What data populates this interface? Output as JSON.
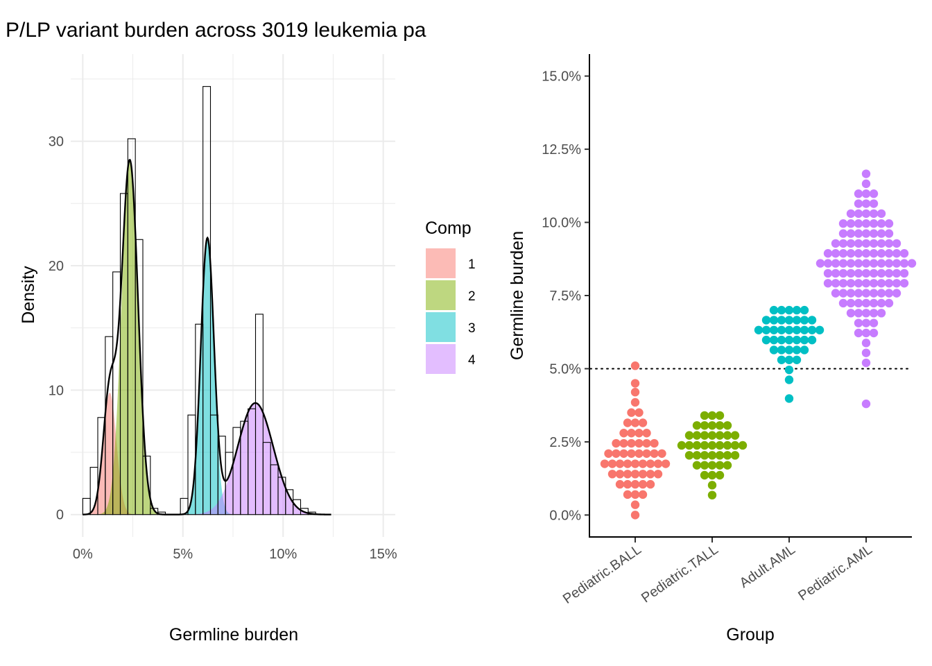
{
  "chart_data": [
    {
      "type": "histogram-density",
      "title": "P/LP variant burden across 3019 leukemia pa",
      "xlabel": "Germline burden",
      "ylabel": "Density",
      "xlim": [
        -0.006,
        0.156
      ],
      "ylim": [
        -1.8,
        37
      ],
      "x_ticks": [
        {
          "value": 0.0,
          "label": "0%"
        },
        {
          "value": 0.05,
          "label": "5%"
        },
        {
          "value": 0.1,
          "label": "10%"
        },
        {
          "value": 0.15,
          "label": "15%"
        }
      ],
      "y_ticks": [
        {
          "value": 0,
          "label": "0"
        },
        {
          "value": 10,
          "label": "10"
        },
        {
          "value": 20,
          "label": "20"
        },
        {
          "value": 30,
          "label": "30"
        }
      ],
      "grid": true,
      "legend": {
        "title": "Comp",
        "placement": "right"
      },
      "histogram": {
        "bin_width": 0.00375,
        "bins": [
          {
            "x0": 0.0,
            "density": 1.3
          },
          {
            "x0": 0.00375,
            "density": 3.8
          },
          {
            "x0": 0.0075,
            "density": 7.8
          },
          {
            "x0": 0.01125,
            "density": 14.3
          },
          {
            "x0": 0.015,
            "density": 19.5
          },
          {
            "x0": 0.01875,
            "density": 25.8
          },
          {
            "x0": 0.0225,
            "density": 30.2
          },
          {
            "x0": 0.02625,
            "density": 22.1
          },
          {
            "x0": 0.03,
            "density": 4.7
          },
          {
            "x0": 0.03375,
            "density": 0.5
          },
          {
            "x0": 0.0375,
            "density": 0.2
          },
          {
            "x0": 0.04125,
            "density": 0
          },
          {
            "x0": 0.045,
            "density": 0
          },
          {
            "x0": 0.04875,
            "density": 1.3
          },
          {
            "x0": 0.0525,
            "density": 8.0
          },
          {
            "x0": 0.05625,
            "density": 15.3
          },
          {
            "x0": 0.06,
            "density": 34.4
          },
          {
            "x0": 0.06375,
            "density": 8.0
          },
          {
            "x0": 0.0675,
            "density": 6.3
          },
          {
            "x0": 0.07125,
            "density": 5.0
          },
          {
            "x0": 0.075,
            "density": 7.0
          },
          {
            "x0": 0.07875,
            "density": 7.5
          },
          {
            "x0": 0.0825,
            "density": 8.5
          },
          {
            "x0": 0.08625,
            "density": 16.1
          },
          {
            "x0": 0.09,
            "density": 5.8
          },
          {
            "x0": 0.09375,
            "density": 4.0
          },
          {
            "x0": 0.0975,
            "density": 3.0
          },
          {
            "x0": 0.10125,
            "density": 2.0
          },
          {
            "x0": 0.105,
            "density": 1.2
          },
          {
            "x0": 0.10875,
            "density": 0.5
          },
          {
            "x0": 0.1125,
            "density": 0.2
          }
        ]
      },
      "components": [
        {
          "name": "1",
          "mean": 0.0135,
          "sd": 0.0033,
          "weight": 0.081,
          "color": "#F8766D"
        },
        {
          "name": "2",
          "mean": 0.0235,
          "sd": 0.0041,
          "weight": 0.292,
          "color": "#7CAE00"
        },
        {
          "name": "3",
          "mean": 0.0622,
          "sd": 0.0033,
          "weight": 0.182,
          "color": "#00BFC4"
        },
        {
          "name": "4",
          "mean": 0.0862,
          "sd": 0.0089,
          "weight": 0.2,
          "color": "#C77CFF"
        }
      ],
      "curve_x_range": [
        0.0,
        0.124
      ]
    },
    {
      "type": "beeswarm",
      "xlabel": "Group",
      "ylabel": "Germline burden",
      "ylim": [
        -0.0075,
        0.1575
      ],
      "y_ticks": [
        {
          "value": 0.0,
          "label": "0.0%"
        },
        {
          "value": 0.025,
          "label": "2.5%"
        },
        {
          "value": 0.05,
          "label": "5.0%"
        },
        {
          "value": 0.075,
          "label": "7.5%"
        },
        {
          "value": 0.1,
          "label": "10.0%"
        },
        {
          "value": 0.125,
          "label": "12.5%"
        },
        {
          "value": 0.15,
          "label": "15.0%"
        }
      ],
      "reference_line": 0.05,
      "groups": [
        {
          "name": "Pediatric.BALL",
          "color": "#F8766D",
          "rows": [
            [
              0.0,
              1
            ],
            [
              0.0035,
              1
            ],
            [
              0.007,
              3
            ],
            [
              0.0105,
              5
            ],
            [
              0.014,
              7
            ],
            [
              0.0175,
              9
            ],
            [
              0.021,
              8
            ],
            [
              0.0245,
              6
            ],
            [
              0.028,
              4
            ],
            [
              0.0315,
              3
            ],
            [
              0.035,
              2
            ],
            [
              0.0385,
              1
            ],
            [
              0.042,
              1
            ],
            [
              0.045,
              1
            ],
            [
              0.051,
              1
            ]
          ]
        },
        {
          "name": "Pediatric.TALL",
          "color": "#7CAE00",
          "rows": [
            [
              0.0068,
              1
            ],
            [
              0.0102,
              1
            ],
            [
              0.0136,
              3
            ],
            [
              0.017,
              5
            ],
            [
              0.0204,
              7
            ],
            [
              0.0238,
              9
            ],
            [
              0.0272,
              7
            ],
            [
              0.0306,
              5
            ],
            [
              0.034,
              3
            ]
          ]
        },
        {
          "name": "Adult.AML",
          "color": "#00BFC4",
          "rows": [
            [
              0.0398,
              1
            ],
            [
              0.0462,
              1
            ],
            [
              0.0496,
              1
            ],
            [
              0.053,
              3
            ],
            [
              0.0564,
              5
            ],
            [
              0.0598,
              7
            ],
            [
              0.0632,
              9
            ],
            [
              0.0666,
              7
            ],
            [
              0.07,
              5
            ]
          ]
        },
        {
          "name": "Pediatric.AML",
          "color": "#C77CFF",
          "rows": [
            [
              0.038,
              1
            ],
            [
              0.052,
              1
            ],
            [
              0.0554,
              1
            ],
            [
              0.0588,
              1
            ],
            [
              0.0622,
              3
            ],
            [
              0.0656,
              3
            ],
            [
              0.069,
              5
            ],
            [
              0.0724,
              7
            ],
            [
              0.0758,
              9
            ],
            [
              0.0792,
              11
            ],
            [
              0.0826,
              11
            ],
            [
              0.086,
              13
            ],
            [
              0.0894,
              11
            ],
            [
              0.0928,
              9
            ],
            [
              0.0962,
              7
            ],
            [
              0.0996,
              7
            ],
            [
              0.103,
              5
            ],
            [
              0.1064,
              3
            ],
            [
              0.1098,
              3
            ],
            [
              0.1132,
              1
            ],
            [
              0.1166,
              1
            ]
          ]
        }
      ]
    }
  ]
}
